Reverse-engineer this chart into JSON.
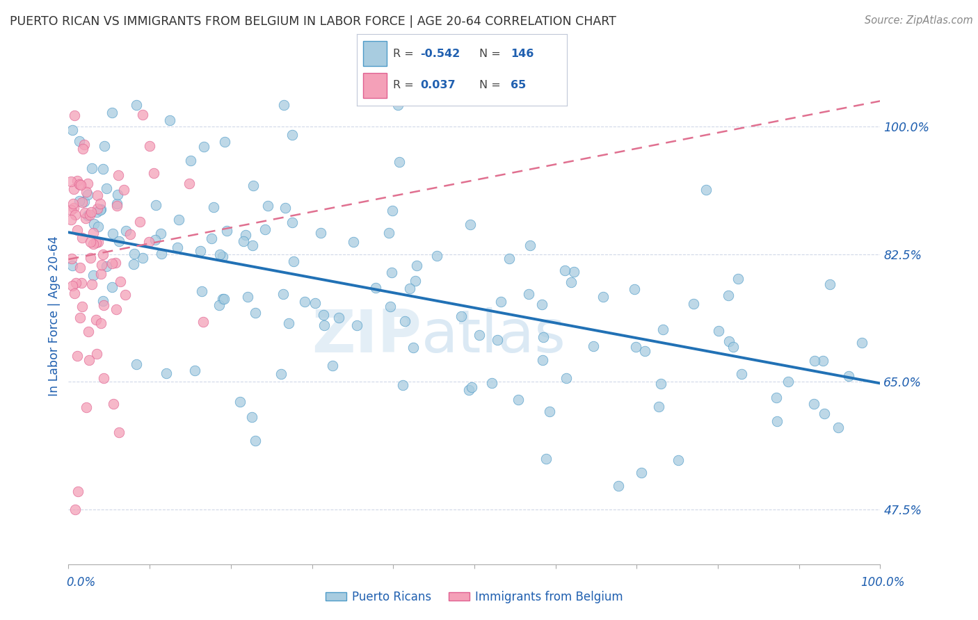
{
  "title": "PUERTO RICAN VS IMMIGRANTS FROM BELGIUM IN LABOR FORCE | AGE 20-64 CORRELATION CHART",
  "source": "Source: ZipAtlas.com",
  "ylabel": "In Labor Force | Age 20-64",
  "ytick_labels": [
    "47.5%",
    "65.0%",
    "82.5%",
    "100.0%"
  ],
  "ytick_values": [
    0.475,
    0.65,
    0.825,
    1.0
  ],
  "xmin": 0.0,
  "xmax": 1.0,
  "ymin": 0.4,
  "ymax": 1.08,
  "legend_label1": "Puerto Ricans",
  "legend_label2": "Immigrants from Belgium",
  "blue_fill": "#a8cce0",
  "blue_edge": "#4e9bc8",
  "blue_line": "#2171b5",
  "pink_fill": "#f4a0b8",
  "pink_edge": "#e06090",
  "pink_line": "#e07090",
  "text_color": "#2060b0",
  "grid_color": "#d0d8e8",
  "watermark_color1": "#c8dff0",
  "watermark_color2": "#b0cce0",
  "blue_trend_x0": 0.0,
  "blue_trend_y0": 0.855,
  "blue_trend_x1": 1.0,
  "blue_trend_y1": 0.648,
  "pink_trend_x0": 0.0,
  "pink_trend_y0": 0.818,
  "pink_trend_x1": 1.0,
  "pink_trend_y1": 1.035
}
